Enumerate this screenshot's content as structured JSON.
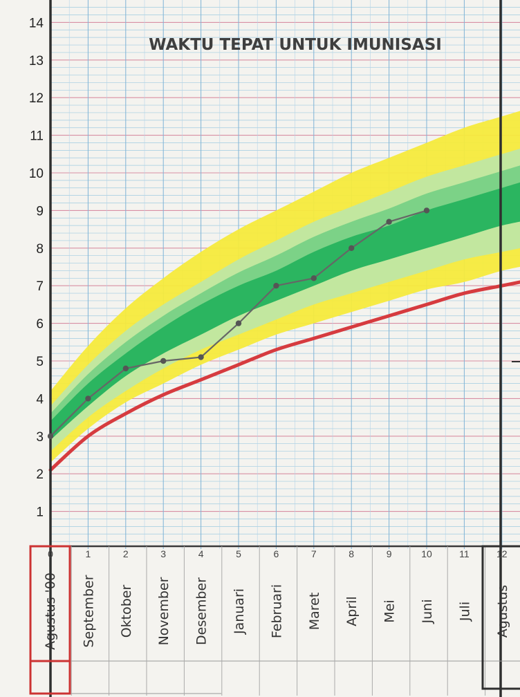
{
  "chart_data": {
    "type": "line",
    "title": "WAKTU TEPAT UNTUK IMUNISASI",
    "xlabel": "",
    "ylabel": "",
    "xlim": [
      0,
      12.8
    ],
    "ylim": [
      0,
      14.3
    ],
    "x_ticks": [
      0,
      1,
      2,
      3,
      4,
      5,
      6,
      7,
      8,
      9,
      10,
      11,
      12
    ],
    "y_ticks": [
      1,
      2,
      3,
      4,
      5,
      6,
      7,
      8,
      9,
      10,
      11,
      12,
      13,
      14
    ],
    "months": [
      "Agustus '00",
      "September",
      "Oktober",
      "November",
      "Desember",
      "Januari",
      "Februari",
      "Maret",
      "April",
      "Mei",
      "Juni",
      "Juli",
      "Agustus"
    ],
    "series": [
      {
        "x": [
          0,
          1,
          2,
          3,
          4,
          5,
          6,
          7,
          8,
          9,
          10
        ],
        "y": [
          3.0,
          4.0,
          4.8,
          5.0,
          5.1,
          6.0,
          7.0,
          7.2,
          8.0,
          8.7,
          9.0
        ]
      }
    ],
    "reference_curves": {
      "red": [
        2.1,
        3.0,
        3.6,
        4.1,
        4.5,
        4.9,
        5.3,
        5.6,
        5.9,
        6.2,
        6.5,
        6.8,
        7.0,
        7.2
      ],
      "yellow_low": [
        2.3,
        3.2,
        3.9,
        4.4,
        4.9,
        5.3,
        5.7,
        6.0,
        6.3,
        6.6,
        6.9,
        7.1,
        7.4,
        7.6
      ],
      "light_green_low": [
        2.6,
        3.5,
        4.2,
        4.8,
        5.3,
        5.7,
        6.1,
        6.5,
        6.8,
        7.1,
        7.4,
        7.7,
        7.9,
        8.1
      ],
      "green_low": [
        2.9,
        3.8,
        4.6,
        5.2,
        5.7,
        6.2,
        6.6,
        7.0,
        7.4,
        7.7,
        8.0,
        8.3,
        8.6,
        8.8
      ],
      "green_high": [
        3.4,
        4.4,
        5.2,
        5.9,
        6.5,
        7.0,
        7.4,
        7.9,
        8.3,
        8.6,
        9.0,
        9.3,
        9.6,
        9.9
      ],
      "light_green_high": [
        3.8,
        4.9,
        5.8,
        6.5,
        7.1,
        7.7,
        8.2,
        8.7,
        9.1,
        9.5,
        9.9,
        10.2,
        10.5,
        10.8
      ],
      "yellow_high": [
        4.2,
        5.4,
        6.4,
        7.2,
        7.9,
        8.5,
        9.0,
        9.5,
        10.0,
        10.4,
        10.8,
        11.2,
        11.5,
        11.8
      ]
    },
    "colors": {
      "yellow": "#f6ea3c",
      "light_green": "#bfe7a4",
      "mid_green": "#74cf84",
      "green": "#27b35e",
      "red": "#d63b3f",
      "data_line": "#666666",
      "axis": "#2f2f2f",
      "frame_red": "#cc3333"
    },
    "grid": true,
    "legend": "none"
  }
}
